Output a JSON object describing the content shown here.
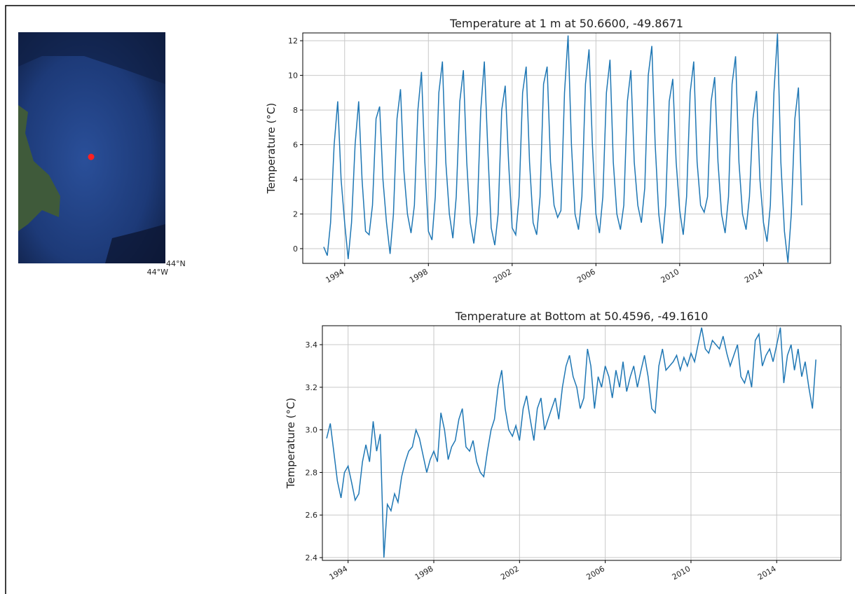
{
  "map": {
    "lat_label": "44°N",
    "lon_label": "44°W"
  },
  "chart_data": [
    {
      "type": "line",
      "title": "Temperature at 1 m at 50.6600, -49.8671",
      "y_label": "Temperature (°C)",
      "color": "#1f77b4",
      "grid": true,
      "xlim": [
        1992.0,
        2017.2
      ],
      "xticks": [
        1994,
        1998,
        2002,
        2006,
        2010,
        2014
      ],
      "ylim": [
        -0.85,
        12.45
      ],
      "yticks": [
        0,
        2,
        4,
        6,
        8,
        10,
        12
      ],
      "x": [
        1993.0,
        1993.17,
        1993.33,
        1993.5,
        1993.67,
        1993.83,
        1994.0,
        1994.17,
        1994.33,
        1994.5,
        1994.67,
        1994.83,
        1995.0,
        1995.17,
        1995.33,
        1995.5,
        1995.67,
        1995.83,
        1996.0,
        1996.17,
        1996.33,
        1996.5,
        1996.67,
        1996.83,
        1997.0,
        1997.17,
        1997.33,
        1997.5,
        1997.67,
        1997.83,
        1998.0,
        1998.17,
        1998.33,
        1998.5,
        1998.67,
        1998.83,
        1999.0,
        1999.17,
        1999.33,
        1999.5,
        1999.67,
        1999.83,
        2000.0,
        2000.17,
        2000.33,
        2000.5,
        2000.67,
        2000.83,
        2001.0,
        2001.17,
        2001.33,
        2001.5,
        2001.67,
        2001.83,
        2002.0,
        2002.17,
        2002.33,
        2002.5,
        2002.67,
        2002.83,
        2003.0,
        2003.17,
        2003.33,
        2003.5,
        2003.67,
        2003.83,
        2004.0,
        2004.17,
        2004.33,
        2004.5,
        2004.67,
        2004.83,
        2005.0,
        2005.17,
        2005.33,
        2005.5,
        2005.67,
        2005.83,
        2006.0,
        2006.17,
        2006.33,
        2006.5,
        2006.67,
        2006.83,
        2007.0,
        2007.17,
        2007.33,
        2007.5,
        2007.67,
        2007.83,
        2008.0,
        2008.17,
        2008.33,
        2008.5,
        2008.67,
        2008.83,
        2009.0,
        2009.17,
        2009.33,
        2009.5,
        2009.67,
        2009.83,
        2010.0,
        2010.17,
        2010.33,
        2010.5,
        2010.67,
        2010.83,
        2011.0,
        2011.17,
        2011.33,
        2011.5,
        2011.67,
        2011.83,
        2012.0,
        2012.17,
        2012.33,
        2012.5,
        2012.67,
        2012.83,
        2013.0,
        2013.17,
        2013.33,
        2013.5,
        2013.67,
        2013.83,
        2014.0,
        2014.17,
        2014.33,
        2014.5,
        2014.67,
        2014.83,
        2015.0,
        2015.17,
        2015.33,
        2015.5,
        2015.67,
        2015.83
      ],
      "values": [
        0.1,
        -0.4,
        1.5,
        6,
        8.5,
        4,
        1.5,
        -0.6,
        1.5,
        6,
        8.5,
        4,
        1.0,
        0.8,
        2.5,
        7.5,
        8.2,
        4,
        1.5,
        -0.3,
        2,
        7.5,
        9.2,
        4.5,
        2,
        0.9,
        2.5,
        8,
        10.2,
        5,
        1,
        0.5,
        3,
        9,
        10.8,
        5,
        2,
        0.6,
        3,
        8.5,
        10.3,
        5,
        1.5,
        0.3,
        2,
        8,
        10.8,
        6,
        1.2,
        0.2,
        2,
        8,
        9.4,
        5,
        1.2,
        0.8,
        3,
        9,
        10.5,
        5,
        1.5,
        0.8,
        3,
        9.5,
        10.5,
        5,
        2.5,
        1.8,
        2.2,
        9,
        12.3,
        6,
        2,
        1.1,
        3,
        9.5,
        11.5,
        6,
        2,
        0.9,
        3,
        9,
        10.9,
        5,
        2,
        1.1,
        2.5,
        8.5,
        10.3,
        5,
        2.5,
        1.5,
        3.5,
        10,
        11.7,
        6,
        2,
        0.3,
        2.5,
        8.5,
        9.8,
        5,
        2.2,
        0.8,
        3,
        9,
        10.8,
        5,
        2.5,
        2.1,
        3,
        8.5,
        9.9,
        5,
        2,
        0.9,
        3,
        9.5,
        11.1,
        5,
        2,
        1.1,
        3,
        7.5,
        9.1,
        4,
        1.5,
        0.4,
        2.5,
        9,
        12.4,
        5,
        1,
        -0.8,
        2,
        7.5,
        9.3,
        2.5
      ]
    },
    {
      "type": "line",
      "title": "Temperature at Bottom at 50.4596, -49.1610",
      "y_label": "Temperature (°C)",
      "color": "#1f77b4",
      "grid": true,
      "xlim": [
        1992.8,
        2017.0
      ],
      "xticks": [
        1994,
        1998,
        2002,
        2006,
        2010,
        2014
      ],
      "ylim": [
        2.387,
        3.489
      ],
      "yticks": [
        2.4,
        2.6,
        2.8,
        {
          "value": 3,
          "label": "3.0"
        },
        3.2,
        3.4
      ],
      "x": [
        1993.0,
        1993.17,
        1993.33,
        1993.5,
        1993.67,
        1993.83,
        1994.0,
        1994.17,
        1994.33,
        1994.5,
        1994.67,
        1994.83,
        1995.0,
        1995.17,
        1995.33,
        1995.5,
        1995.67,
        1995.83,
        1996.0,
        1996.17,
        1996.33,
        1996.5,
        1996.67,
        1996.83,
        1997.0,
        1997.17,
        1997.33,
        1997.5,
        1997.67,
        1997.83,
        1998.0,
        1998.17,
        1998.33,
        1998.5,
        1998.67,
        1998.83,
        1999.0,
        1999.17,
        1999.33,
        1999.5,
        1999.67,
        1999.83,
        2000.0,
        2000.17,
        2000.33,
        2000.5,
        2000.67,
        2000.83,
        2001.0,
        2001.17,
        2001.33,
        2001.5,
        2001.67,
        2001.83,
        2002.0,
        2002.17,
        2002.33,
        2002.5,
        2002.67,
        2002.83,
        2003.0,
        2003.17,
        2003.33,
        2003.5,
        2003.67,
        2003.83,
        2004.0,
        2004.17,
        2004.33,
        2004.5,
        2004.67,
        2004.83,
        2005.0,
        2005.17,
        2005.33,
        2005.5,
        2005.67,
        2005.83,
        2006.0,
        2006.17,
        2006.33,
        2006.5,
        2006.67,
        2006.83,
        2007.0,
        2007.17,
        2007.33,
        2007.5,
        2007.67,
        2007.83,
        2008.0,
        2008.17,
        2008.33,
        2008.5,
        2008.67,
        2008.83,
        2009.0,
        2009.17,
        2009.33,
        2009.5,
        2009.67,
        2009.83,
        2010.0,
        2010.17,
        2010.33,
        2010.5,
        2010.67,
        2010.83,
        2011.0,
        2011.17,
        2011.33,
        2011.5,
        2011.67,
        2011.83,
        2012.0,
        2012.17,
        2012.33,
        2012.5,
        2012.67,
        2012.83,
        2013.0,
        2013.17,
        2013.33,
        2013.5,
        2013.67,
        2013.83,
        2014.0,
        2014.17,
        2014.33,
        2014.5,
        2014.67,
        2014.83,
        2015.0,
        2015.17,
        2015.33,
        2015.5,
        2015.67,
        2015.83
      ],
      "values": [
        2.96,
        3.03,
        2.9,
        2.76,
        2.68,
        2.8,
        2.83,
        2.75,
        2.67,
        2.7,
        2.85,
        2.93,
        2.85,
        3.04,
        2.9,
        2.98,
        2.4,
        2.65,
        2.62,
        2.7,
        2.66,
        2.78,
        2.85,
        2.9,
        2.92,
        3.0,
        2.96,
        2.88,
        2.8,
        2.86,
        2.9,
        2.85,
        3.08,
        3.0,
        2.86,
        2.92,
        2.95,
        3.05,
        3.1,
        2.92,
        2.9,
        2.95,
        2.85,
        2.8,
        2.78,
        2.9,
        3.0,
        3.05,
        3.2,
        3.28,
        3.1,
        3.0,
        2.97,
        3.02,
        2.95,
        3.1,
        3.16,
        3.05,
        2.95,
        3.1,
        3.15,
        3.0,
        3.05,
        3.1,
        3.15,
        3.05,
        3.2,
        3.3,
        3.35,
        3.25,
        3.2,
        3.1,
        3.15,
        3.38,
        3.3,
        3.1,
        3.25,
        3.2,
        3.3,
        3.25,
        3.15,
        3.28,
        3.2,
        3.32,
        3.18,
        3.25,
        3.3,
        3.2,
        3.28,
        3.35,
        3.25,
        3.1,
        3.08,
        3.3,
        3.38,
        3.28,
        3.3,
        3.32,
        3.35,
        3.28,
        3.34,
        3.3,
        3.36,
        3.32,
        3.4,
        3.48,
        3.38,
        3.36,
        3.42,
        3.4,
        3.38,
        3.44,
        3.36,
        3.3,
        3.35,
        3.4,
        3.25,
        3.22,
        3.28,
        3.2,
        3.42,
        3.45,
        3.3,
        3.35,
        3.38,
        3.32,
        3.4,
        3.48,
        3.22,
        3.35,
        3.4,
        3.28,
        3.38,
        3.25,
        3.32,
        3.2,
        3.1,
        3.33
      ]
    }
  ]
}
